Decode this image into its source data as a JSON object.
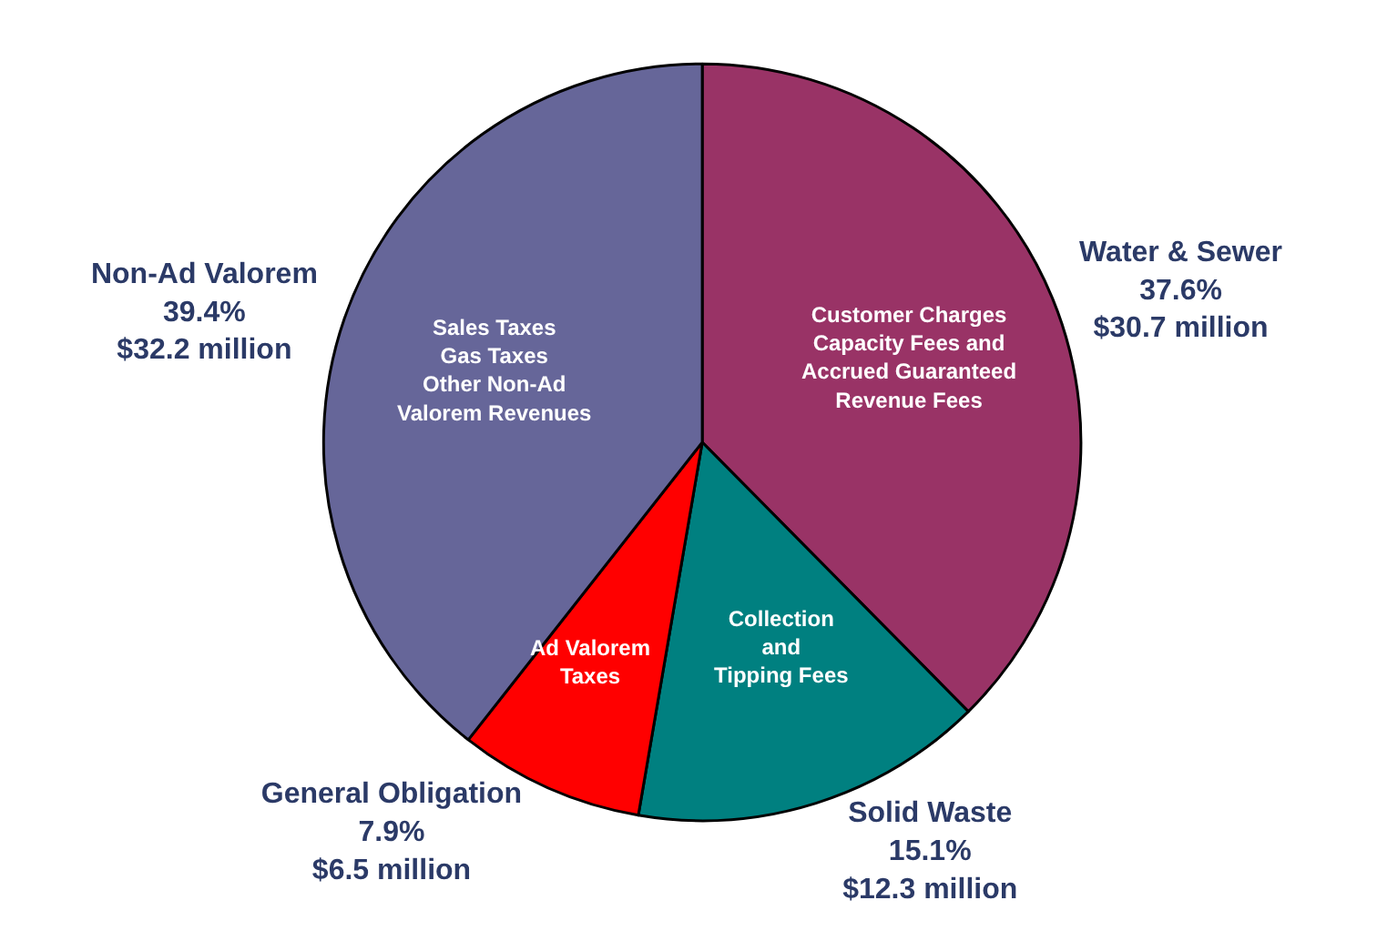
{
  "chart_data": {
    "type": "pie",
    "categories": [
      "Water & Sewer",
      "Solid Waste",
      "General Obligation",
      "Non-Ad Valorem"
    ],
    "values": [
      37.6,
      15.1,
      7.9,
      39.4
    ],
    "colors": [
      "#993366",
      "#008080",
      "#ff0000",
      "#666699"
    ],
    "value_labels": [
      "37.6%\n$30.7 million",
      "15.1%\n$12.3 million",
      "7.9%\n$6.5 million",
      "39.4%\n$32.2 million"
    ],
    "annotations": [
      "Customer Charges\nCapacity Fees and\nAccrued Guaranteed\nRevenue Fees",
      "Collection\nand\nTipping Fees",
      "Ad Valorem\nTaxes",
      "Sales Taxes\nGas Taxes\nOther Non-Ad\nValorem Revenues"
    ]
  }
}
